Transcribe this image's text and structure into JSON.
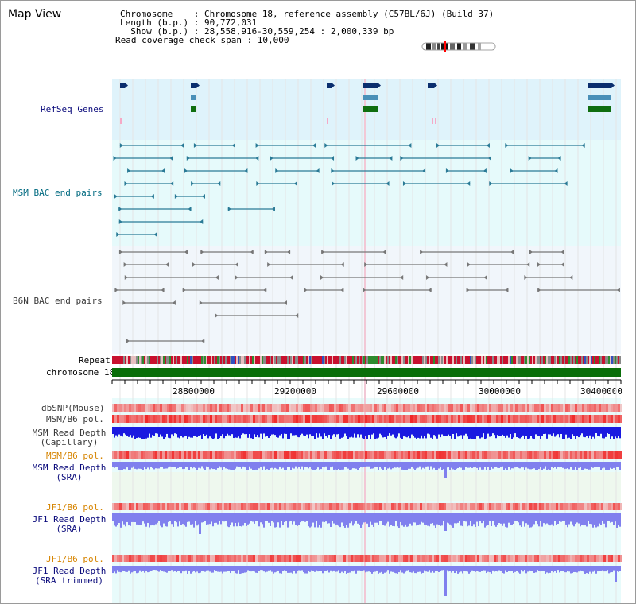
{
  "page": {
    "title": "Map View"
  },
  "info": {
    "rows": [
      "Chromosome    : Chromosome 18, reference assembly (C57BL/6J) (Build 37)",
      "Length (b.p.) : 90,772,031",
      "  Show (b.p.) : 28,558,916-30,559,254 : 2,000,339 bp",
      "Read coverage check span : 10,000"
    ]
  },
  "tracks": {
    "refseq": "RefSeq Genes",
    "msm_bac": "MSM BAC end pairs",
    "b6n_bac": "B6N BAC end pairs",
    "repeat": "Repeat",
    "chrom": "chromosome 18",
    "dbsnp": "dbSNP(Mouse)",
    "msm_b6_pol_1": "MSM/B6 pol.",
    "msm_depth_cap_1": "MSM Read Depth",
    "msm_depth_cap_2": "(Capillary)",
    "msm_b6_pol_2": "MSM/B6 pol.",
    "msm_depth_sra_1": "MSM Read Depth",
    "msm_depth_sra_2": "(SRA)",
    "jf1_b6_pol_1": "JF1/B6 pol.",
    "jf1_depth_sra_1": "JF1 Read Depth",
    "jf1_depth_sra_2": "(SRA)",
    "jf1_b6_pol_2": "JF1/B6 pol.",
    "jf1_trim_1": "JF1 Read Depth",
    "jf1_trim_2": "(SRA trimmed)"
  },
  "axis": {
    "ticks": [
      "28800000",
      "29200000",
      "29600000",
      "30000000",
      "30400000"
    ]
  },
  "colors": {
    "refseq_bg": "#dff3fb",
    "bac_bg": "#e6fafb",
    "gene_navy": "#0b2e6e",
    "gene_blue": "#4a90b8",
    "gene_green": "#0f6e0f",
    "msm_pair": "#2a7a96",
    "b6n_pair": "#777777",
    "chrom_green": "#0a6e0a",
    "depth_blue": "#1a1ae0",
    "depth_light": "#8080ee"
  }
}
